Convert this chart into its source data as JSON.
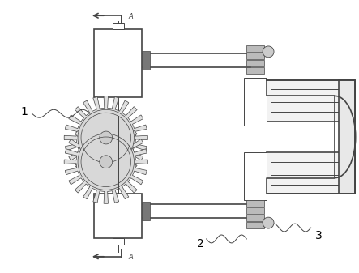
{
  "bg_color": "#ffffff",
  "lc": "#444444",
  "lw": 0.7,
  "tlw": 1.2,
  "fig_w": 4.43,
  "fig_h": 3.37
}
